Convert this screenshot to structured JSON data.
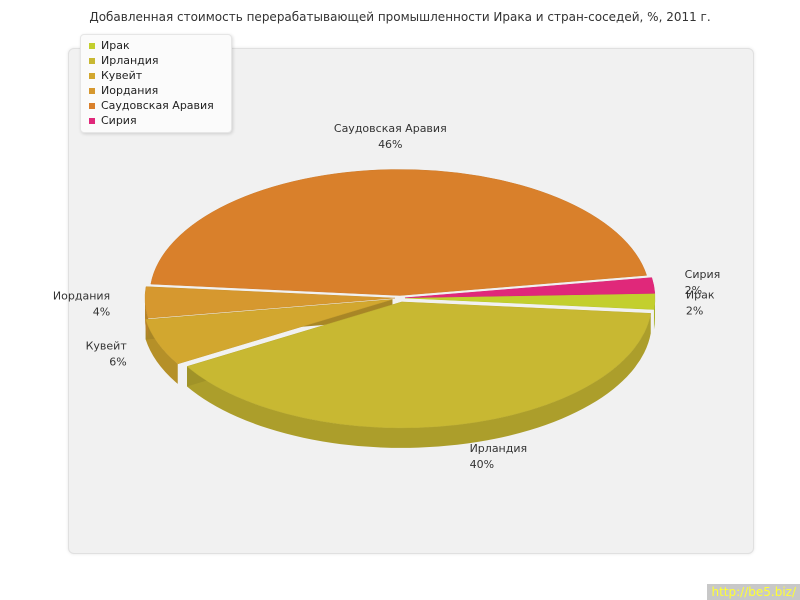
{
  "chart_data": {
    "type": "pie",
    "title": "Добавленная стоимость перерабатывающей промышленности Ирака и стран-соседей, %, 2011 г.",
    "unit": "%",
    "legend_position": "top-left",
    "slices": [
      {
        "name": "Ирак",
        "value": 2,
        "label": "2%",
        "color": "#c3cf2e"
      },
      {
        "name": "Ирландия",
        "value": 40,
        "label": "40%",
        "color": "#c8b832"
      },
      {
        "name": "Кувейт",
        "value": 6,
        "label": "6%",
        "color": "#d2a72f"
      },
      {
        "name": "Иордания",
        "value": 4,
        "label": "4%",
        "color": "#d6982f"
      },
      {
        "name": "Саудовская Аравия",
        "value": 46,
        "label": "46%",
        "color": "#d9802b"
      },
      {
        "name": "Сирия",
        "value": 2,
        "label": "2%",
        "color": "#e0287a"
      }
    ]
  },
  "watermark": "http://be5.biz/"
}
